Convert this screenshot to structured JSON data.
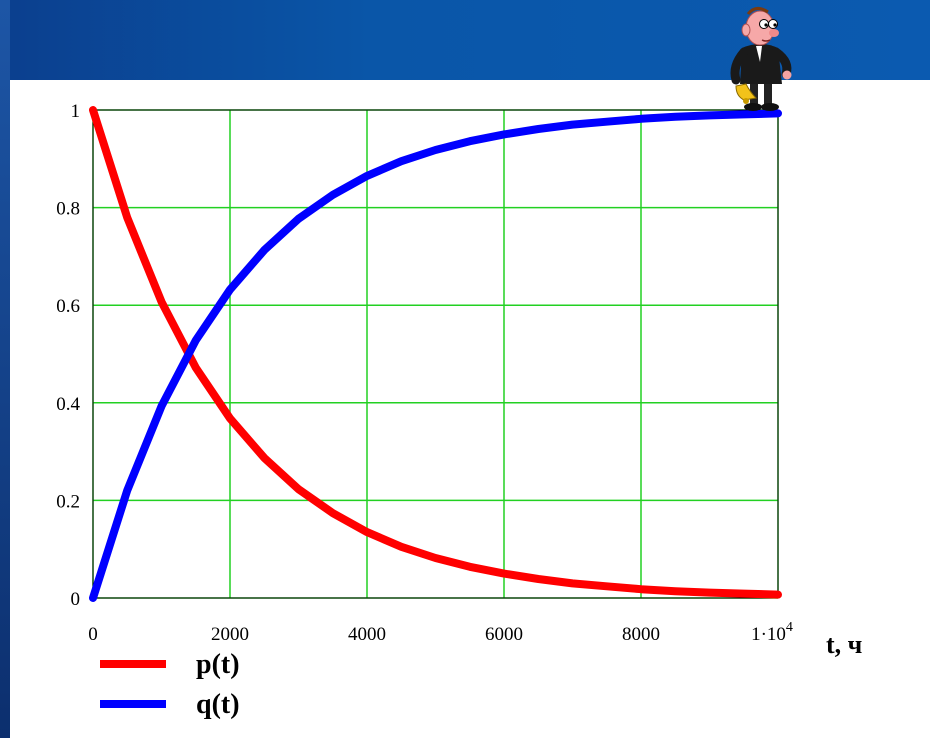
{
  "chart_data": {
    "type": "line",
    "title": "",
    "xlabel": "t, ч",
    "ylabel": "",
    "xlim": [
      0,
      10000
    ],
    "ylim": [
      0,
      1
    ],
    "grid": true,
    "grid_color": "#22d022",
    "x_ticks": [
      {
        "value": 0,
        "label": "0"
      },
      {
        "value": 2000,
        "label": "2000"
      },
      {
        "value": 4000,
        "label": "4000"
      },
      {
        "value": 6000,
        "label": "6000"
      },
      {
        "value": 8000,
        "label": "8000"
      },
      {
        "value": 10000,
        "label": "1·10",
        "sup": "4"
      }
    ],
    "y_ticks": [
      {
        "value": 0,
        "label": "0"
      },
      {
        "value": 0.2,
        "label": "0.2"
      },
      {
        "value": 0.4,
        "label": "0.4"
      },
      {
        "value": 0.6,
        "label": "0.6"
      },
      {
        "value": 0.8,
        "label": "0.8"
      },
      {
        "value": 1,
        "label": "1"
      }
    ],
    "legend_position": "bottom-left",
    "series": [
      {
        "name": "p(t)",
        "color": "#ff0000",
        "x": [
          0,
          500,
          1000,
          1500,
          2000,
          2500,
          3000,
          3500,
          4000,
          4500,
          5000,
          5500,
          6000,
          6500,
          7000,
          7500,
          8000,
          8500,
          9000,
          9500,
          10000
        ],
        "y": [
          1.0,
          0.779,
          0.607,
          0.472,
          0.368,
          0.287,
          0.223,
          0.174,
          0.135,
          0.105,
          0.082,
          0.064,
          0.05,
          0.039,
          0.03,
          0.024,
          0.018,
          0.014,
          0.011,
          0.009,
          0.007
        ]
      },
      {
        "name": "q(t)",
        "color": "#0000ff",
        "x": [
          0,
          500,
          1000,
          1500,
          2000,
          2500,
          3000,
          3500,
          4000,
          4500,
          5000,
          5500,
          6000,
          6500,
          7000,
          7500,
          8000,
          8500,
          9000,
          9500,
          10000
        ],
        "y": [
          0.0,
          0.221,
          0.393,
          0.528,
          0.632,
          0.713,
          0.777,
          0.826,
          0.865,
          0.895,
          0.918,
          0.936,
          0.95,
          0.961,
          0.97,
          0.976,
          0.982,
          0.986,
          0.989,
          0.991,
          0.993
        ]
      }
    ]
  },
  "mascot": {
    "icon": "cartoon-man-with-bell-icon"
  }
}
